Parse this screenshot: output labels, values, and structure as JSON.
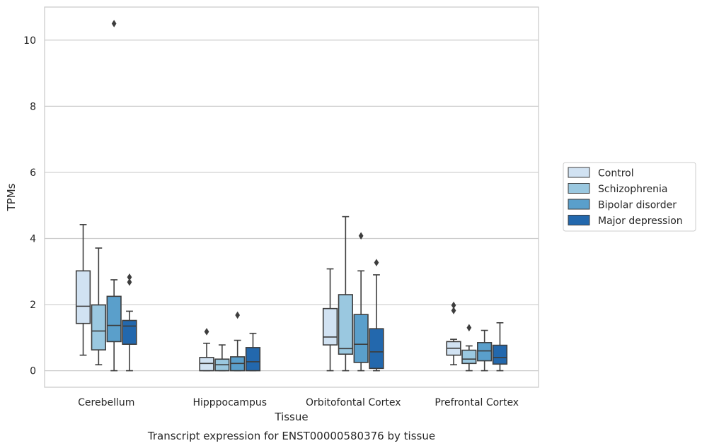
{
  "chart_data": {
    "type": "box",
    "caption": "Transcript expression for ENST00000580376 by tissue",
    "xlabel": "Tissue",
    "ylabel": "TPMs",
    "ylim": [
      -0.5,
      11
    ],
    "yticks": [
      0,
      2,
      4,
      6,
      8,
      10
    ],
    "grid": true,
    "legend_position": "right",
    "categories": [
      "Cerebellum",
      "Hipppocampus",
      "Orbitofontal Cortex",
      "Prefrontal Cortex"
    ],
    "series": [
      {
        "name": "Control",
        "color": "#d1e2f2",
        "boxes": [
          {
            "whislo": 0.47,
            "q1": 1.43,
            "med": 1.95,
            "q3": 3.02,
            "whishi": 4.42,
            "fliers": []
          },
          {
            "whislo": 0.0,
            "q1": 0.0,
            "med": 0.22,
            "q3": 0.4,
            "whishi": 0.83,
            "fliers": [
              1.18
            ]
          },
          {
            "whislo": 0.0,
            "q1": 0.78,
            "med": 1.02,
            "q3": 1.88,
            "whishi": 3.08,
            "fliers": []
          },
          {
            "whislo": 0.18,
            "q1": 0.47,
            "med": 0.68,
            "q3": 0.88,
            "whishi": 0.95,
            "fliers": [
              1.82,
              1.98
            ]
          }
        ]
      },
      {
        "name": "Schizophrenia",
        "color": "#9ac8e0",
        "boxes": [
          {
            "whislo": 0.18,
            "q1": 0.63,
            "med": 1.2,
            "q3": 1.99,
            "whishi": 3.71,
            "fliers": []
          },
          {
            "whislo": 0.0,
            "q1": 0.0,
            "med": 0.18,
            "q3": 0.35,
            "whishi": 0.78,
            "fliers": []
          },
          {
            "whislo": 0.0,
            "q1": 0.5,
            "med": 0.67,
            "q3": 2.3,
            "whishi": 4.66,
            "fliers": []
          },
          {
            "whislo": 0.0,
            "q1": 0.22,
            "med": 0.35,
            "q3": 0.62,
            "whishi": 0.75,
            "fliers": [
              1.3
            ]
          }
        ]
      },
      {
        "name": "Bipolar disorder",
        "color": "#5a9fcb",
        "boxes": [
          {
            "whislo": 0.0,
            "q1": 0.88,
            "med": 1.37,
            "q3": 2.25,
            "whishi": 2.75,
            "fliers": [
              10.5
            ]
          },
          {
            "whislo": 0.0,
            "q1": 0.0,
            "med": 0.22,
            "q3": 0.42,
            "whishi": 0.92,
            "fliers": [
              1.68
            ]
          },
          {
            "whislo": 0.0,
            "q1": 0.25,
            "med": 0.8,
            "q3": 1.7,
            "whishi": 3.02,
            "fliers": [
              4.08
            ]
          },
          {
            "whislo": 0.0,
            "q1": 0.3,
            "med": 0.6,
            "q3": 0.85,
            "whishi": 1.22,
            "fliers": []
          }
        ]
      },
      {
        "name": "Major depression",
        "color": "#2368ad",
        "boxes": [
          {
            "whislo": 0.0,
            "q1": 0.8,
            "med": 1.35,
            "q3": 1.52,
            "whishi": 1.8,
            "fliers": [
              2.68,
              2.83
            ]
          },
          {
            "whislo": 0.0,
            "q1": 0.0,
            "med": 0.27,
            "q3": 0.7,
            "whishi": 1.13,
            "fliers": []
          },
          {
            "whislo": 0.0,
            "q1": 0.07,
            "med": 0.57,
            "q3": 1.27,
            "whishi": 2.9,
            "fliers": [
              3.27
            ]
          },
          {
            "whislo": 0.0,
            "q1": 0.2,
            "med": 0.4,
            "q3": 0.77,
            "whishi": 1.45,
            "fliers": []
          }
        ]
      }
    ]
  }
}
